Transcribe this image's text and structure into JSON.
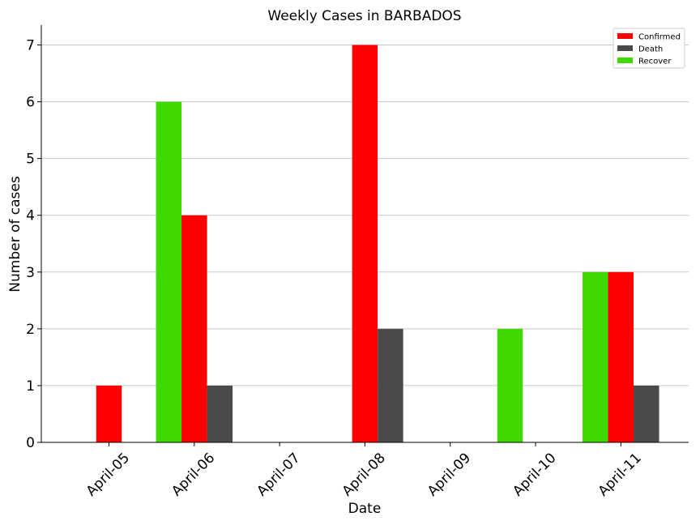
{
  "chart_data": {
    "type": "bar",
    "title": "Weekly Cases in BARBADOS",
    "xlabel": "Date",
    "ylabel": "Number of cases",
    "categories": [
      "April-05",
      "April-06",
      "April-07",
      "April-08",
      "April-09",
      "April-10",
      "April-11"
    ],
    "series": [
      {
        "name": "Recover",
        "color": "#3fd900",
        "values": [
          0,
          6,
          0,
          0,
          0,
          2,
          3
        ]
      },
      {
        "name": "Confirmed",
        "color": "#ff0000",
        "values": [
          1,
          4,
          0,
          7,
          0,
          0,
          3
        ]
      },
      {
        "name": "Death",
        "color": "#4a4a4a",
        "values": [
          0,
          1,
          0,
          2,
          0,
          0,
          1
        ]
      }
    ],
    "legend_order": [
      "Confirmed",
      "Death",
      "Recover"
    ],
    "legend_position": "top-right",
    "ylim": [
      0,
      7.35
    ],
    "yticks": [
      0,
      1,
      2,
      3,
      4,
      5,
      6,
      7
    ],
    "grid": "horizontal"
  }
}
